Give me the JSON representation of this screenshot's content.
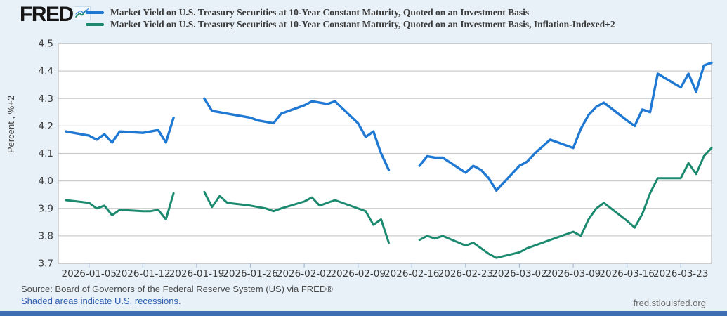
{
  "header": {
    "logo_text": "FRED",
    "logo_icon": "sparkline-chart-icon",
    "legend": [
      {
        "label": "Market Yield on U.S. Treasury Securities at 10-Year Constant Maturity, Quoted on an Investment Basis",
        "color": "#1f78d2"
      },
      {
        "label": "Market Yield on U.S. Treasury Securities at 10-Year Constant Maturity, Quoted on an Investment Basis, Inflation-Indexed+2",
        "color": "#1b8a6e"
      }
    ]
  },
  "footer": {
    "source_text": "Source: Board of Governors of the Federal Reserve System (US) via FRED®",
    "recessions_link": "Shaded areas indicate U.S. recessions.",
    "watermark": "fred.stlouisfed.org"
  },
  "chart_data": {
    "type": "line",
    "title": "",
    "ylabel": "Percent , %+2",
    "xlabel": "",
    "ylim": [
      3.7,
      4.5
    ],
    "yticks": [
      3.7,
      3.8,
      3.9,
      4.0,
      4.1,
      4.2,
      4.3,
      4.4,
      4.5
    ],
    "grid": true,
    "legend_position": "top",
    "x_range": [
      "2026-01-01",
      "2026-03-27"
    ],
    "xtick_labels": [
      "2026-01-05",
      "2026-01-12",
      "2026-01-19",
      "2026-01-26",
      "2026-02-02",
      "2026-02-09",
      "2026-02-16",
      "2026-02-23",
      "2026-03-02",
      "2026-03-09",
      "2026-03-16",
      "2026-03-23"
    ],
    "x": [
      "2026-01-02",
      "2026-01-05",
      "2026-01-06",
      "2026-01-07",
      "2026-01-08",
      "2026-01-09",
      "2026-01-12",
      "2026-01-13",
      "2026-01-14",
      "2026-01-15",
      "2026-01-16",
      "2026-01-19",
      "2026-01-20",
      "2026-01-21",
      "2026-01-22",
      "2026-01-23",
      "2026-01-26",
      "2026-01-27",
      "2026-01-28",
      "2026-01-29",
      "2026-01-30",
      "2026-02-02",
      "2026-02-03",
      "2026-02-04",
      "2026-02-05",
      "2026-02-06",
      "2026-02-09",
      "2026-02-10",
      "2026-02-11",
      "2026-02-12",
      "2026-02-13",
      "2026-02-16",
      "2026-02-17",
      "2026-02-18",
      "2026-02-19",
      "2026-02-20",
      "2026-02-23",
      "2026-02-24",
      "2026-02-25",
      "2026-02-26",
      "2026-02-27",
      "2026-03-02",
      "2026-03-03",
      "2026-03-04",
      "2026-03-05",
      "2026-03-06",
      "2026-03-09",
      "2026-03-10",
      "2026-03-11",
      "2026-03-12",
      "2026-03-13",
      "2026-03-16",
      "2026-03-17",
      "2026-03-18",
      "2026-03-19",
      "2026-03-20",
      "2026-03-23",
      "2026-03-24",
      "2026-03-25",
      "2026-03-26",
      "2026-03-27"
    ],
    "series": [
      {
        "name": "Market Yield on U.S. Treasury Securities at 10-Year Constant Maturity, Quoted on an Investment Basis",
        "color": "#1f78d2",
        "values": [
          4.18,
          4.165,
          4.15,
          4.17,
          4.14,
          4.18,
          4.175,
          4.18,
          4.185,
          4.14,
          4.23,
          null,
          4.3,
          4.255,
          4.25,
          4.245,
          4.23,
          4.22,
          4.215,
          4.21,
          4.245,
          4.275,
          4.29,
          4.285,
          4.28,
          4.29,
          4.21,
          4.16,
          4.18,
          4.1,
          4.04,
          null,
          4.055,
          4.09,
          4.085,
          4.085,
          4.03,
          4.055,
          4.04,
          4.01,
          3.965,
          4.055,
          4.07,
          4.1,
          4.125,
          4.15,
          4.12,
          4.19,
          4.24,
          4.27,
          4.285,
          4.22,
          4.2,
          4.26,
          4.25,
          4.39,
          4.34,
          4.39,
          4.325,
          4.42,
          4.43
        ]
      },
      {
        "name": "Market Yield on U.S. Treasury Securities at 10-Year Constant Maturity, Quoted on an Investment Basis, Inflation-Indexed+2",
        "color": "#1b8a6e",
        "values": [
          3.93,
          3.92,
          3.9,
          3.91,
          3.875,
          3.895,
          3.89,
          3.89,
          3.895,
          3.86,
          3.955,
          null,
          3.96,
          3.905,
          3.945,
          3.92,
          3.91,
          3.905,
          3.9,
          3.89,
          3.9,
          3.925,
          3.94,
          3.91,
          3.92,
          3.93,
          3.9,
          3.89,
          3.84,
          3.86,
          3.775,
          null,
          3.785,
          3.8,
          3.79,
          3.8,
          3.765,
          3.775,
          3.755,
          3.735,
          3.72,
          3.74,
          3.755,
          3.765,
          3.775,
          3.785,
          3.815,
          3.8,
          3.86,
          3.9,
          3.92,
          3.855,
          3.83,
          3.88,
          3.955,
          4.01,
          4.01,
          4.065,
          4.025,
          4.09,
          4.12
        ]
      }
    ]
  }
}
